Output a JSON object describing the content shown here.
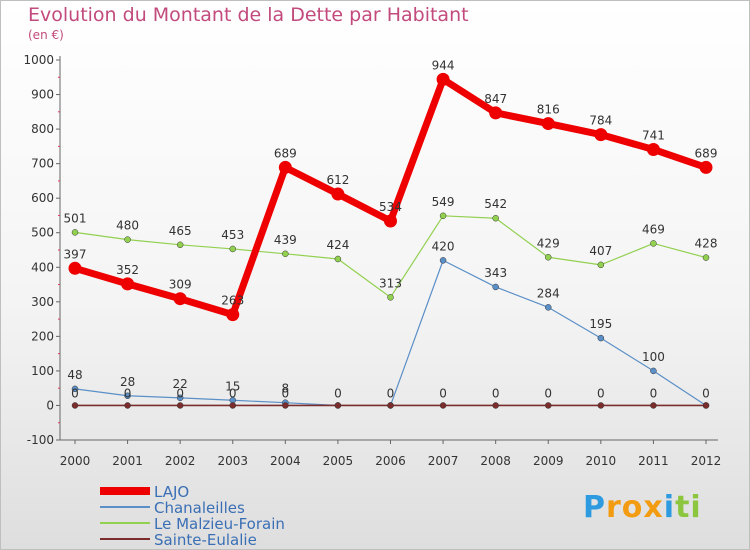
{
  "chart_data": {
    "type": "line",
    "title": "Evolution du Montant de la Dette par Habitant",
    "subtitle": "(en €)",
    "xlabel": "",
    "ylabel": "",
    "ylim": [
      -100,
      1000
    ],
    "yticks": [
      "-100",
      "0",
      "100",
      "200",
      "300",
      "400",
      "500",
      "600",
      "700",
      "800",
      "900",
      "1000"
    ],
    "ytick_values": [
      -100,
      0,
      100,
      200,
      300,
      400,
      500,
      600,
      700,
      800,
      900,
      1000
    ],
    "categories": [
      "2000",
      "2001",
      "2002",
      "2003",
      "2004",
      "2005",
      "2006",
      "2007",
      "2008",
      "2009",
      "2010",
      "2011",
      "2012"
    ],
    "grid": false,
    "legend_position": "bottom-left",
    "series": [
      {
        "name": "LAJO",
        "color": "#ee0000",
        "values": [
          397,
          352,
          309,
          263,
          689,
          612,
          534,
          944,
          847,
          816,
          784,
          741,
          689
        ]
      },
      {
        "name": "Chanaleilles",
        "color": "#5b8fc7",
        "values": [
          48,
          28,
          22,
          15,
          8,
          0,
          0,
          420,
          343,
          284,
          195,
          100,
          0
        ]
      },
      {
        "name": "Le Malzieu-Forain",
        "color": "#92d050",
        "values": [
          501,
          480,
          465,
          453,
          439,
          424,
          313,
          549,
          542,
          429,
          407,
          469,
          428
        ]
      },
      {
        "name": "Sainte-Eulalie",
        "color": "#7b2c2c",
        "values": [
          0,
          0,
          0,
          0,
          0,
          0,
          0,
          0,
          0,
          0,
          0,
          0,
          0
        ]
      }
    ]
  },
  "logo": {
    "letters": [
      "P",
      "r",
      "o",
      "x",
      "i",
      "t",
      "i"
    ],
    "colors": [
      "#2e9be0",
      "#f39c12",
      "#f39c12",
      "#f39c12",
      "#2e9be0",
      "#8cc63f",
      "#8cc63f"
    ]
  }
}
